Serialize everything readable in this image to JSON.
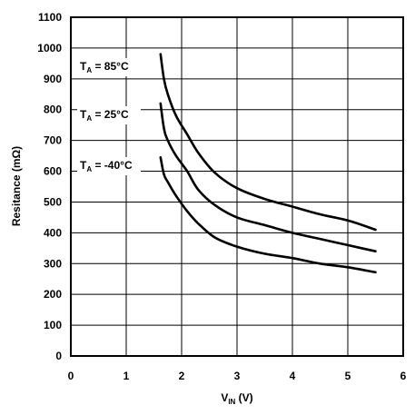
{
  "chart_data": {
    "type": "line",
    "title": "",
    "xlabel": {
      "main": "V",
      "sub": "IN",
      "unit": " (V)"
    },
    "ylabel": "Resitance (mΩ)",
    "xlim": [
      0,
      6
    ],
    "ylim": [
      0,
      1100
    ],
    "x_ticks": [
      0,
      1,
      2,
      3,
      4,
      5,
      6
    ],
    "y_ticks": [
      0,
      100,
      200,
      300,
      400,
      500,
      600,
      700,
      800,
      900,
      1000,
      1100
    ],
    "grid": true,
    "series": [
      {
        "label": {
          "t": "T",
          "sub": "A",
          "value": " = 85°C"
        },
        "x": [
          1.62,
          1.68,
          1.75,
          1.9,
          2.1,
          2.3,
          2.6,
          3.0,
          3.5,
          4.0,
          4.5,
          5.0,
          5.5
        ],
        "y": [
          980,
          900,
          850,
          780,
          720,
          660,
          595,
          545,
          510,
          485,
          460,
          440,
          410
        ]
      },
      {
        "label": {
          "t": "T",
          "sub": "A",
          "value": " = 25°C"
        },
        "x": [
          1.62,
          1.68,
          1.75,
          1.9,
          2.1,
          2.3,
          2.6,
          3.0,
          3.5,
          4.0,
          4.5,
          5.0,
          5.5
        ],
        "y": [
          820,
          740,
          700,
          650,
          600,
          540,
          490,
          450,
          425,
          400,
          380,
          360,
          340
        ]
      },
      {
        "label": {
          "t": "T",
          "sub": "A",
          "value": " = -40°C"
        },
        "x": [
          1.62,
          1.68,
          1.75,
          1.9,
          2.1,
          2.3,
          2.6,
          3.0,
          3.5,
          4.0,
          4.5,
          5.0,
          5.5
        ],
        "y": [
          645,
          590,
          565,
          520,
          470,
          430,
          385,
          355,
          332,
          318,
          300,
          288,
          272
        ]
      }
    ]
  }
}
